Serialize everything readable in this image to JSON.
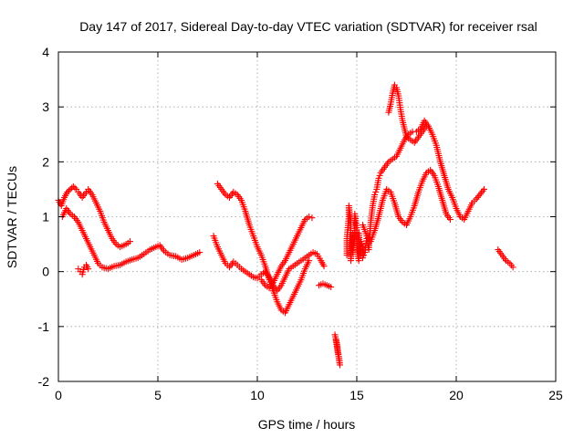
{
  "chart_data": {
    "type": "scatter",
    "title": "Day 147 of 2017, Sidereal Day-to-day VTEC variation (SDTVAR) for receiver rsal",
    "xlabel": "GPS time / hours",
    "ylabel": "SDTVAR / TECUs",
    "xlim": [
      0,
      25
    ],
    "ylim": [
      -2,
      4
    ],
    "xticks": [
      "0",
      "5",
      "10",
      "15",
      "20",
      "25"
    ],
    "yticks": [
      "-2",
      "-1",
      "0",
      "1",
      "2",
      "3",
      "4"
    ],
    "grid": true,
    "legend": "none",
    "marker": "plus",
    "marker_color": "#ff0000",
    "series": [
      {
        "points": [
          [
            0.0,
            1.3
          ],
          [
            0.15,
            1.2
          ],
          [
            0.3,
            1.35
          ],
          [
            0.45,
            1.45
          ],
          [
            0.6,
            1.5
          ],
          [
            0.75,
            1.55
          ],
          [
            0.9,
            1.5
          ],
          [
            1.0,
            1.45
          ],
          [
            1.2,
            1.35
          ],
          [
            1.4,
            1.45
          ],
          [
            1.5,
            1.5
          ],
          [
            1.7,
            1.4
          ],
          [
            1.9,
            1.25
          ],
          [
            2.1,
            1.1
          ],
          [
            2.3,
            0.9
          ],
          [
            2.5,
            0.75
          ],
          [
            2.7,
            0.6
          ],
          [
            2.9,
            0.5
          ],
          [
            3.1,
            0.45
          ],
          [
            3.3,
            0.48
          ],
          [
            3.5,
            0.52
          ],
          [
            3.6,
            0.55
          ]
        ]
      },
      {
        "points": [
          [
            0.2,
            1.0
          ],
          [
            0.4,
            1.15
          ],
          [
            0.6,
            1.05
          ],
          [
            0.8,
            1.0
          ],
          [
            1.0,
            0.9
          ],
          [
            1.2,
            0.75
          ],
          [
            1.4,
            0.6
          ],
          [
            1.6,
            0.45
          ],
          [
            1.8,
            0.3
          ],
          [
            2.0,
            0.15
          ],
          [
            2.2,
            0.08
          ],
          [
            2.5,
            0.05
          ],
          [
            2.8,
            0.1
          ],
          [
            3.1,
            0.12
          ],
          [
            3.4,
            0.18
          ],
          [
            3.7,
            0.22
          ],
          [
            4.0,
            0.25
          ],
          [
            4.3,
            0.32
          ],
          [
            4.6,
            0.4
          ],
          [
            4.9,
            0.45
          ],
          [
            5.1,
            0.48
          ],
          [
            5.3,
            0.38
          ],
          [
            5.6,
            0.3
          ],
          [
            5.9,
            0.28
          ],
          [
            6.2,
            0.22
          ],
          [
            6.5,
            0.25
          ],
          [
            6.8,
            0.3
          ],
          [
            7.1,
            0.35
          ]
        ]
      },
      {
        "points": [
          [
            1.0,
            0.05
          ],
          [
            1.1,
            0.0
          ],
          [
            1.2,
            -0.05
          ],
          [
            1.3,
            0.08
          ],
          [
            1.4,
            0.12
          ],
          [
            1.5,
            0.05
          ]
        ]
      },
      {
        "points": [
          [
            7.8,
            0.65
          ],
          [
            8.0,
            0.45
          ],
          [
            8.2,
            0.3
          ],
          [
            8.4,
            0.15
          ],
          [
            8.6,
            0.08
          ],
          [
            8.8,
            0.18
          ],
          [
            9.0,
            0.12
          ],
          [
            9.2,
            0.05
          ],
          [
            9.4,
            0.0
          ],
          [
            9.6,
            -0.05
          ],
          [
            9.8,
            -0.1
          ],
          [
            10.0,
            -0.12
          ],
          [
            10.2,
            -0.05
          ],
          [
            10.4,
            0.0
          ],
          [
            10.6,
            -0.1
          ],
          [
            10.8,
            -0.25
          ],
          [
            11.0,
            -0.35
          ],
          [
            11.2,
            -0.25
          ],
          [
            11.4,
            -0.1
          ],
          [
            11.6,
            0.05
          ],
          [
            11.8,
            0.1
          ],
          [
            12.0,
            0.15
          ],
          [
            12.2,
            0.2
          ],
          [
            12.4,
            0.25
          ],
          [
            12.6,
            0.3
          ],
          [
            12.8,
            0.35
          ],
          [
            13.0,
            0.32
          ],
          [
            13.2,
            0.2
          ],
          [
            13.35,
            0.1
          ]
        ]
      },
      {
        "points": [
          [
            8.0,
            1.6
          ],
          [
            8.2,
            1.5
          ],
          [
            8.4,
            1.4
          ],
          [
            8.6,
            1.35
          ],
          [
            8.8,
            1.45
          ],
          [
            9.0,
            1.4
          ],
          [
            9.2,
            1.3
          ],
          [
            9.4,
            1.1
          ],
          [
            9.6,
            0.85
          ],
          [
            9.8,
            0.65
          ],
          [
            10.0,
            0.45
          ],
          [
            10.2,
            0.3
          ],
          [
            10.4,
            0.1
          ],
          [
            10.6,
            -0.15
          ],
          [
            10.8,
            -0.35
          ],
          [
            11.0,
            -0.55
          ],
          [
            11.2,
            -0.7
          ],
          [
            11.4,
            -0.75
          ],
          [
            11.6,
            -0.6
          ],
          [
            11.8,
            -0.45
          ],
          [
            12.0,
            -0.3
          ],
          [
            12.2,
            -0.15
          ],
          [
            12.4,
            0.05
          ],
          [
            12.6,
            0.2
          ]
        ]
      },
      {
        "points": [
          [
            10.2,
            -0.15
          ],
          [
            10.4,
            -0.25
          ],
          [
            10.6,
            -0.3
          ],
          [
            10.8,
            -0.2
          ],
          [
            11.0,
            -0.05
          ],
          [
            11.2,
            0.1
          ],
          [
            11.4,
            0.2
          ],
          [
            11.6,
            0.35
          ],
          [
            11.8,
            0.5
          ],
          [
            12.0,
            0.65
          ],
          [
            12.2,
            0.8
          ],
          [
            12.4,
            0.95
          ],
          [
            12.6,
            1.0
          ],
          [
            12.75,
            0.98
          ]
        ]
      },
      {
        "points": [
          [
            13.1,
            -0.25
          ],
          [
            13.3,
            -0.22
          ],
          [
            13.5,
            -0.25
          ],
          [
            13.7,
            -0.28
          ]
        ]
      },
      {
        "points": [
          [
            13.9,
            -1.15
          ],
          [
            14.0,
            -1.3
          ],
          [
            14.05,
            -1.45
          ],
          [
            14.1,
            -1.55
          ],
          [
            14.15,
            -1.7
          ],
          [
            13.95,
            -1.25
          ]
        ]
      },
      {
        "points": [
          [
            14.5,
            0.3
          ],
          [
            14.5,
            0.6
          ],
          [
            14.6,
            1.0
          ],
          [
            14.6,
            1.2
          ],
          [
            14.7,
            0.9
          ],
          [
            14.7,
            0.2
          ],
          [
            14.8,
            0.7
          ],
          [
            14.8,
            0.35
          ],
          [
            14.9,
            0.6
          ],
          [
            14.9,
            1.05
          ],
          [
            15.0,
            0.8
          ],
          [
            15.0,
            0.4
          ],
          [
            15.1,
            0.2
          ],
          [
            15.1,
            0.7
          ],
          [
            15.2,
            0.3
          ],
          [
            15.2,
            0.55
          ],
          [
            15.3,
            0.45
          ],
          [
            15.3,
            0.25
          ],
          [
            15.4,
            0.35
          ],
          [
            15.5,
            0.6
          ],
          [
            15.6,
            0.4
          ],
          [
            15.7,
            0.9
          ],
          [
            15.8,
            1.2
          ],
          [
            15.9,
            1.4
          ],
          [
            16.0,
            1.5
          ],
          [
            16.1,
            1.7
          ],
          [
            16.2,
            1.8
          ],
          [
            16.4,
            1.9
          ],
          [
            16.6,
            2.0
          ],
          [
            16.8,
            2.05
          ],
          [
            17.0,
            2.1
          ],
          [
            17.2,
            2.25
          ],
          [
            17.4,
            2.4
          ],
          [
            17.6,
            2.5
          ],
          [
            17.8,
            2.55
          ],
          [
            18.0,
            2.55
          ],
          [
            18.2,
            2.6
          ],
          [
            18.4,
            2.75
          ],
          [
            18.6,
            2.65
          ],
          [
            18.8,
            2.5
          ],
          [
            19.0,
            2.3
          ],
          [
            19.2,
            2.0
          ],
          [
            19.4,
            1.75
          ],
          [
            19.6,
            1.5
          ],
          [
            19.8,
            1.35
          ],
          [
            20.0,
            1.15
          ],
          [
            20.2,
            1.0
          ],
          [
            20.4,
            0.95
          ],
          [
            20.6,
            1.1
          ],
          [
            20.8,
            1.25
          ],
          [
            21.0,
            1.32
          ],
          [
            21.4,
            1.5
          ]
        ]
      },
      {
        "points": [
          [
            15.3,
            0.85
          ],
          [
            15.5,
            0.65
          ],
          [
            15.7,
            0.55
          ],
          [
            15.9,
            0.75
          ],
          [
            16.1,
            1.0
          ],
          [
            16.3,
            1.3
          ],
          [
            16.5,
            1.5
          ],
          [
            16.7,
            1.45
          ],
          [
            16.9,
            1.25
          ],
          [
            17.1,
            1.0
          ],
          [
            17.3,
            0.9
          ],
          [
            17.5,
            0.85
          ],
          [
            17.7,
            1.0
          ],
          [
            17.9,
            1.2
          ],
          [
            18.1,
            1.45
          ],
          [
            18.3,
            1.65
          ],
          [
            18.5,
            1.8
          ],
          [
            18.7,
            1.85
          ],
          [
            18.9,
            1.75
          ],
          [
            19.1,
            1.55
          ],
          [
            19.3,
            1.3
          ],
          [
            19.5,
            1.05
          ],
          [
            19.7,
            0.95
          ]
        ]
      },
      {
        "points": [
          [
            16.6,
            2.9
          ],
          [
            16.7,
            3.05
          ],
          [
            16.8,
            3.25
          ],
          [
            16.9,
            3.4
          ],
          [
            17.0,
            3.35
          ],
          [
            17.1,
            3.2
          ],
          [
            17.2,
            2.95
          ],
          [
            17.3,
            2.75
          ],
          [
            17.4,
            2.6
          ],
          [
            17.5,
            2.45
          ],
          [
            17.7,
            2.4
          ],
          [
            17.9,
            2.35
          ],
          [
            18.1,
            2.45
          ],
          [
            18.3,
            2.55
          ],
          [
            18.5,
            2.65
          ]
        ]
      },
      {
        "points": [
          [
            22.1,
            0.4
          ],
          [
            22.3,
            0.3
          ],
          [
            22.5,
            0.2
          ],
          [
            22.7,
            0.15
          ],
          [
            22.85,
            0.08
          ]
        ]
      }
    ]
  }
}
